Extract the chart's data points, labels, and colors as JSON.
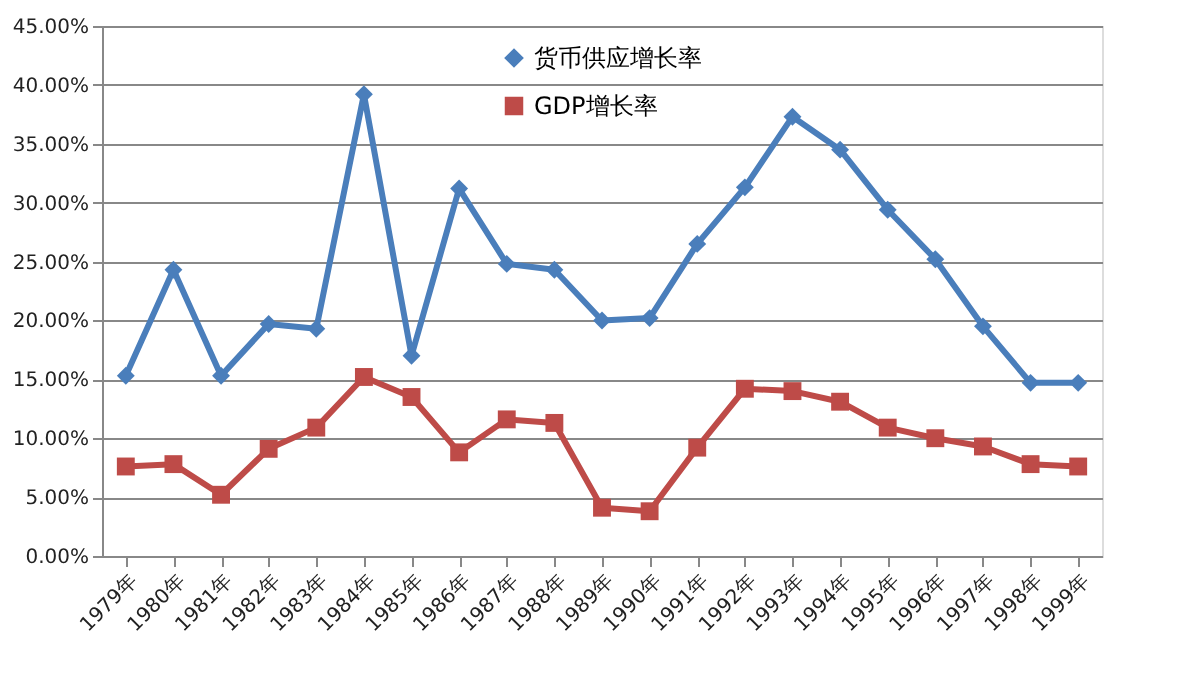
{
  "chart_data": {
    "type": "line",
    "categories": [
      "1979年",
      "1980年",
      "1981年",
      "1982年",
      "1983年",
      "1984年",
      "1985年",
      "1986年",
      "1987年",
      "1988年",
      "1989年",
      "1990年",
      "1991年",
      "1992年",
      "1993年",
      "1994年",
      "1995年",
      "1996年",
      "1997年",
      "1998年",
      "1999年"
    ],
    "series": [
      {
        "name": "货币供应增长率",
        "color": "#4a7ebb",
        "marker": "diamond",
        "values": [
          15.3,
          24.3,
          15.3,
          19.7,
          19.3,
          39.2,
          17.0,
          31.2,
          24.8,
          24.3,
          20.0,
          20.2,
          26.5,
          31.3,
          37.3,
          34.5,
          29.4,
          25.2,
          19.5,
          14.7,
          14.7
        ]
      },
      {
        "name": "GDP增长率",
        "color": "#be4b48",
        "marker": "square",
        "values": [
          7.6,
          7.8,
          5.2,
          9.1,
          10.9,
          15.2,
          13.5,
          8.8,
          11.6,
          11.3,
          4.1,
          3.8,
          9.2,
          14.2,
          14.0,
          13.1,
          10.9,
          10.0,
          9.3,
          7.8,
          7.6
        ]
      }
    ],
    "ylim": [
      0,
      45
    ],
    "yticks": [
      {
        "value": 0,
        "label": "0.00%"
      },
      {
        "value": 5,
        "label": "5.00%"
      },
      {
        "value": 10,
        "label": "10.00%"
      },
      {
        "value": 15,
        "label": "15.00%"
      },
      {
        "value": 20,
        "label": "20.00%"
      },
      {
        "value": 25,
        "label": "25.00%"
      },
      {
        "value": 30,
        "label": "30.00%"
      },
      {
        "value": 35,
        "label": "35.00%"
      },
      {
        "value": 40,
        "label": "40.00%"
      },
      {
        "value": 45,
        "label": "45.00%"
      }
    ],
    "grid": "y",
    "legend": "top",
    "line_style": "solid"
  }
}
